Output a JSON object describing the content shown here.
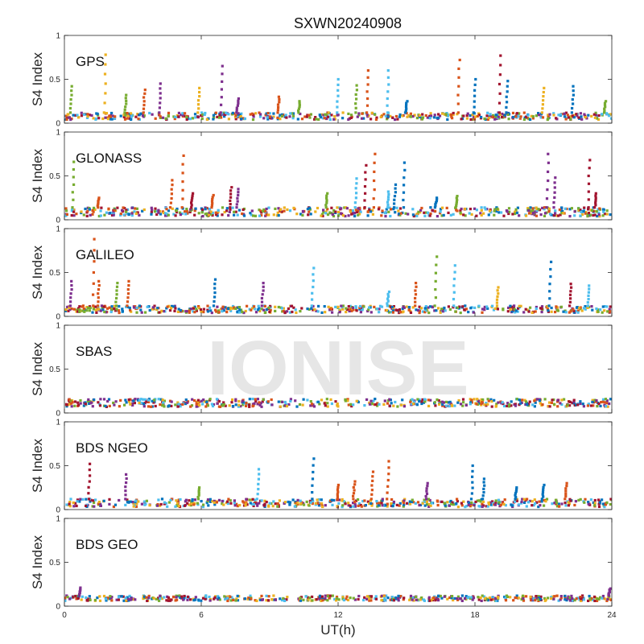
{
  "figure": {
    "title": "SXWN20240908",
    "xlabel": "UT(h)",
    "ylabel": "S4 Index",
    "watermark": "IONISE",
    "colors": [
      "#0072BD",
      "#D95319",
      "#EDB120",
      "#7E2F8E",
      "#77AC30",
      "#4DBEEE",
      "#A2142F"
    ]
  },
  "chart_data": [
    {
      "type": "scatter",
      "label": "GPS",
      "xlim": [
        0,
        24
      ],
      "ylim": [
        0,
        1
      ],
      "xticks": [
        "0",
        "6",
        "12",
        "18",
        "24"
      ],
      "yticks": [
        "0",
        "0.5",
        "1"
      ],
      "baseline": [
        0.04,
        0.12
      ],
      "spikes": [
        {
          "x": 0.3,
          "y": 0.42,
          "c": 4
        },
        {
          "x": 1.8,
          "y": 0.78,
          "c": 2
        },
        {
          "x": 2.7,
          "y": 0.32,
          "c": 4
        },
        {
          "x": 3.5,
          "y": 0.38,
          "c": 1
        },
        {
          "x": 4.2,
          "y": 0.45,
          "c": 3
        },
        {
          "x": 5.9,
          "y": 0.4,
          "c": 2
        },
        {
          "x": 6.9,
          "y": 0.65,
          "c": 3
        },
        {
          "x": 7.6,
          "y": 0.28,
          "c": 3
        },
        {
          "x": 9.4,
          "y": 0.3,
          "c": 1
        },
        {
          "x": 10.3,
          "y": 0.25,
          "c": 4
        },
        {
          "x": 12.0,
          "y": 0.5,
          "c": 5
        },
        {
          "x": 12.8,
          "y": 0.43,
          "c": 4
        },
        {
          "x": 13.3,
          "y": 0.6,
          "c": 1
        },
        {
          "x": 14.2,
          "y": 0.6,
          "c": 5
        },
        {
          "x": 15.0,
          "y": 0.25,
          "c": 0
        },
        {
          "x": 17.3,
          "y": 0.72,
          "c": 1
        },
        {
          "x": 18.0,
          "y": 0.5,
          "c": 0
        },
        {
          "x": 19.1,
          "y": 0.77,
          "c": 6
        },
        {
          "x": 19.4,
          "y": 0.48,
          "c": 0
        },
        {
          "x": 21.0,
          "y": 0.4,
          "c": 2
        },
        {
          "x": 22.3,
          "y": 0.42,
          "c": 0
        },
        {
          "x": 23.7,
          "y": 0.25,
          "c": 4
        }
      ]
    },
    {
      "type": "scatter",
      "label": "GLONASS",
      "xlim": [
        0,
        24
      ],
      "ylim": [
        0,
        1
      ],
      "xticks": [
        "0",
        "6",
        "12",
        "18",
        "24"
      ],
      "yticks": [
        "0",
        "0.5",
        "1"
      ],
      "baseline": [
        0.04,
        0.14
      ],
      "spikes": [
        {
          "x": 0.4,
          "y": 0.66,
          "c": 4
        },
        {
          "x": 1.5,
          "y": 0.25,
          "c": 1
        },
        {
          "x": 4.7,
          "y": 0.45,
          "c": 1
        },
        {
          "x": 5.2,
          "y": 0.73,
          "c": 1
        },
        {
          "x": 5.6,
          "y": 0.3,
          "c": 6
        },
        {
          "x": 6.5,
          "y": 0.28,
          "c": 1
        },
        {
          "x": 7.3,
          "y": 0.37,
          "c": 6
        },
        {
          "x": 7.6,
          "y": 0.35,
          "c": 3
        },
        {
          "x": 11.5,
          "y": 0.3,
          "c": 4
        },
        {
          "x": 12.8,
          "y": 0.47,
          "c": 5
        },
        {
          "x": 13.2,
          "y": 0.62,
          "c": 6
        },
        {
          "x": 13.6,
          "y": 0.75,
          "c": 1
        },
        {
          "x": 14.2,
          "y": 0.32,
          "c": 5
        },
        {
          "x": 14.5,
          "y": 0.4,
          "c": 0
        },
        {
          "x": 14.9,
          "y": 0.65,
          "c": 0
        },
        {
          "x": 16.3,
          "y": 0.25,
          "c": 0
        },
        {
          "x": 17.2,
          "y": 0.27,
          "c": 4
        },
        {
          "x": 21.2,
          "y": 0.75,
          "c": 3
        },
        {
          "x": 21.5,
          "y": 0.48,
          "c": 3
        },
        {
          "x": 23.0,
          "y": 0.68,
          "c": 6
        },
        {
          "x": 23.3,
          "y": 0.3,
          "c": 6
        }
      ]
    },
    {
      "type": "scatter",
      "label": "GALILEO",
      "xlim": [
        0,
        24
      ],
      "ylim": [
        0,
        1
      ],
      "xticks": [
        "0",
        "6",
        "12",
        "18",
        "24"
      ],
      "yticks": [
        "0",
        "0.5",
        "1"
      ],
      "baseline": [
        0.04,
        0.12
      ],
      "spikes": [
        {
          "x": 0.3,
          "y": 0.4,
          "c": 3
        },
        {
          "x": 1.3,
          "y": 0.88,
          "c": 1
        },
        {
          "x": 1.5,
          "y": 0.4,
          "c": 1
        },
        {
          "x": 2.3,
          "y": 0.38,
          "c": 4
        },
        {
          "x": 2.8,
          "y": 0.4,
          "c": 1
        },
        {
          "x": 6.6,
          "y": 0.42,
          "c": 0
        },
        {
          "x": 8.7,
          "y": 0.38,
          "c": 3
        },
        {
          "x": 10.9,
          "y": 0.55,
          "c": 5
        },
        {
          "x": 14.2,
          "y": 0.28,
          "c": 5
        },
        {
          "x": 15.4,
          "y": 0.38,
          "c": 1
        },
        {
          "x": 16.3,
          "y": 0.68,
          "c": 4
        },
        {
          "x": 17.1,
          "y": 0.58,
          "c": 5
        },
        {
          "x": 19.0,
          "y": 0.33,
          "c": 2
        },
        {
          "x": 21.3,
          "y": 0.62,
          "c": 0
        },
        {
          "x": 22.2,
          "y": 0.37,
          "c": 6
        },
        {
          "x": 23.0,
          "y": 0.35,
          "c": 5
        }
      ]
    },
    {
      "type": "scatter",
      "label": "SBAS",
      "xlim": [
        0,
        24
      ],
      "ylim": [
        0,
        1
      ],
      "xticks": [
        "0",
        "6",
        "12",
        "18",
        "24"
      ],
      "yticks": [
        "0",
        "0.5",
        "1"
      ],
      "baseline": [
        0.07,
        0.16
      ],
      "spikes": []
    },
    {
      "type": "scatter",
      "label": "BDS NGEO",
      "xlim": [
        0,
        24
      ],
      "ylim": [
        0,
        1
      ],
      "xticks": [
        "0",
        "6",
        "12",
        "18",
        "24"
      ],
      "yticks": [
        "0",
        "0.5",
        "1"
      ],
      "baseline": [
        0.03,
        0.12
      ],
      "spikes": [
        {
          "x": 1.1,
          "y": 0.52,
          "c": 6
        },
        {
          "x": 2.7,
          "y": 0.4,
          "c": 3
        },
        {
          "x": 5.9,
          "y": 0.25,
          "c": 4
        },
        {
          "x": 8.5,
          "y": 0.46,
          "c": 5
        },
        {
          "x": 10.9,
          "y": 0.58,
          "c": 0
        },
        {
          "x": 12.0,
          "y": 0.28,
          "c": 1
        },
        {
          "x": 12.7,
          "y": 0.32,
          "c": 1
        },
        {
          "x": 13.5,
          "y": 0.43,
          "c": 1
        },
        {
          "x": 14.2,
          "y": 0.55,
          "c": 1
        },
        {
          "x": 15.9,
          "y": 0.3,
          "c": 3
        },
        {
          "x": 17.9,
          "y": 0.5,
          "c": 0
        },
        {
          "x": 18.4,
          "y": 0.35,
          "c": 0
        },
        {
          "x": 19.8,
          "y": 0.25,
          "c": 0
        },
        {
          "x": 21.0,
          "y": 0.28,
          "c": 0
        },
        {
          "x": 22.0,
          "y": 0.3,
          "c": 1
        }
      ]
    },
    {
      "type": "scatter",
      "label": "BDS GEO",
      "xlim": [
        0,
        24
      ],
      "ylim": [
        0,
        1
      ],
      "xticks": [
        "0",
        "6",
        "12",
        "18",
        "24"
      ],
      "yticks": [
        "0",
        "0.5",
        "1"
      ],
      "baseline": [
        0.06,
        0.12
      ],
      "spikes": [
        {
          "x": 0.7,
          "y": 0.21,
          "c": 3
        },
        {
          "x": 23.9,
          "y": 0.2,
          "c": 3
        }
      ]
    }
  ]
}
